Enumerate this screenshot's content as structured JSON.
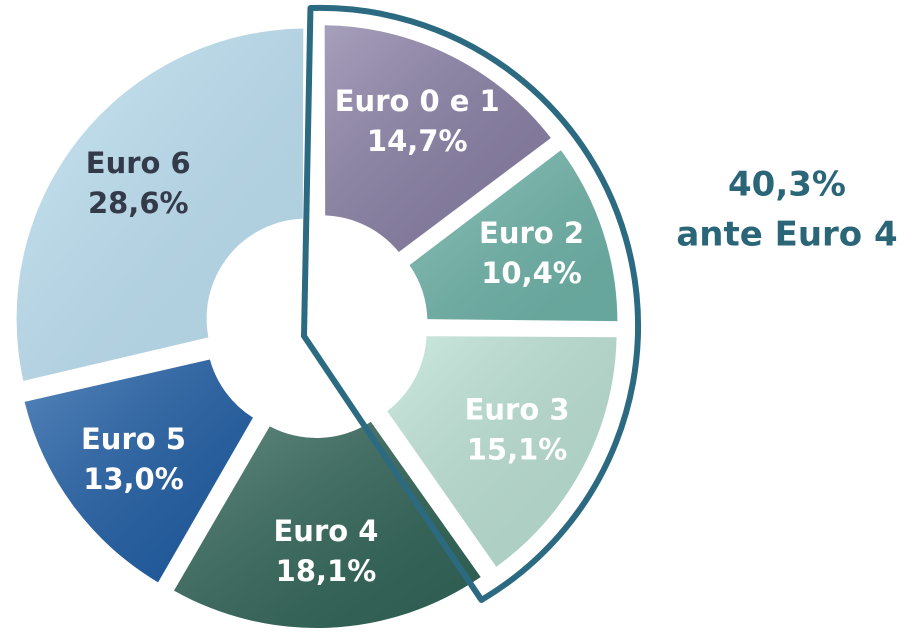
{
  "chart_data": {
    "type": "pie",
    "categories": [
      "Euro 0 e 1",
      "Euro 2",
      "Euro 3",
      "Euro 4",
      "Euro 5",
      "Euro 6"
    ],
    "values": [
      14.7,
      10.4,
      15.1,
      18.1,
      13.0,
      28.6
    ],
    "value_labels": [
      "14,7%",
      "10,4%",
      "15,1%",
      "18,1%",
      "13,0%",
      "28,6%"
    ],
    "colors": [
      "#8a80a6",
      "#6fb5aa",
      "#bde3d6",
      "#316558",
      "#1f5ea6",
      "#bfe3f5"
    ],
    "label_colors": [
      "#ffffff",
      "#ffffff",
      "#ffffff",
      "#ffffff",
      "#ffffff",
      "#333a4a"
    ],
    "annotations": [
      "40,3%",
      "ante Euro 4"
    ],
    "annotation_color": "#2b6678",
    "highlight_color": "#2b6a80"
  }
}
